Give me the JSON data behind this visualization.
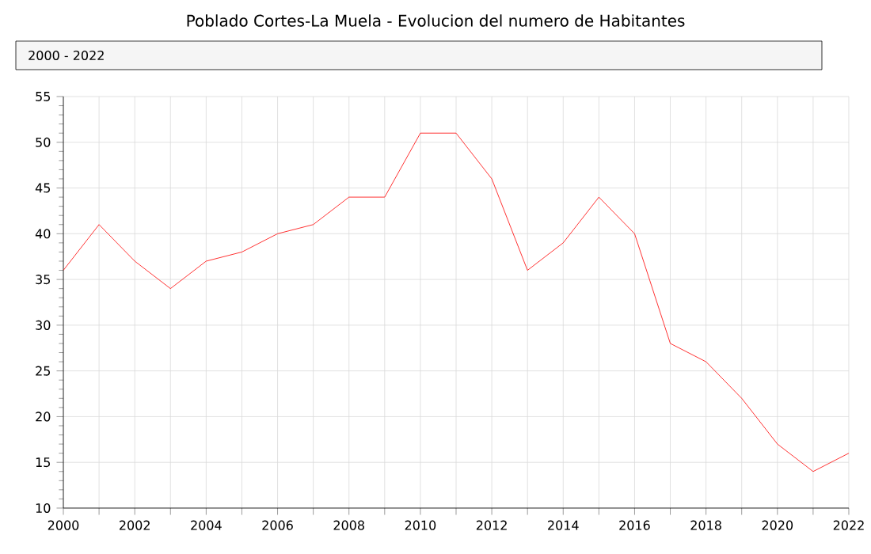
{
  "chart_data": {
    "type": "line",
    "title": "Poblado Cortes-La Muela - Evolucion del numero de Habitantes",
    "annotations": [
      "2000 - 2022"
    ],
    "x": [
      2000,
      2001,
      2002,
      2003,
      2004,
      2005,
      2006,
      2007,
      2008,
      2009,
      2010,
      2011,
      2012,
      2013,
      2014,
      2015,
      2016,
      2017,
      2018,
      2019,
      2020,
      2021,
      2022
    ],
    "series": [
      {
        "color": "#ff0000",
        "values": [
          36,
          41,
          37,
          34,
          37,
          38,
          40,
          41,
          44,
          44,
          51,
          51,
          46,
          36,
          39,
          44,
          40,
          28,
          26,
          22,
          17,
          14,
          16
        ]
      }
    ],
    "xlim": [
      2000,
      2022
    ],
    "xticks": [
      2000,
      {
        "value": 2001,
        "label": null
      },
      2002,
      {
        "value": 2003,
        "label": null
      },
      2004,
      {
        "value": 2005,
        "label": null
      },
      2006,
      {
        "value": 2007,
        "label": null
      },
      2008,
      {
        "value": 2009,
        "label": null
      },
      2010,
      {
        "value": 2011,
        "label": null
      },
      2012,
      {
        "value": 2013,
        "label": null
      },
      2014,
      {
        "value": 2015,
        "label": null
      },
      2016,
      {
        "value": 2017,
        "label": null
      },
      2018,
      {
        "value": 2019,
        "label": null
      },
      2020,
      {
        "value": 2021,
        "label": null
      },
      2022
    ],
    "ylim": [
      10,
      55
    ],
    "yticks": [
      10,
      15,
      20,
      25,
      30,
      35,
      40,
      45,
      50,
      55
    ],
    "grid": true,
    "legend": false,
    "marker": "none",
    "line_style": "solid"
  }
}
